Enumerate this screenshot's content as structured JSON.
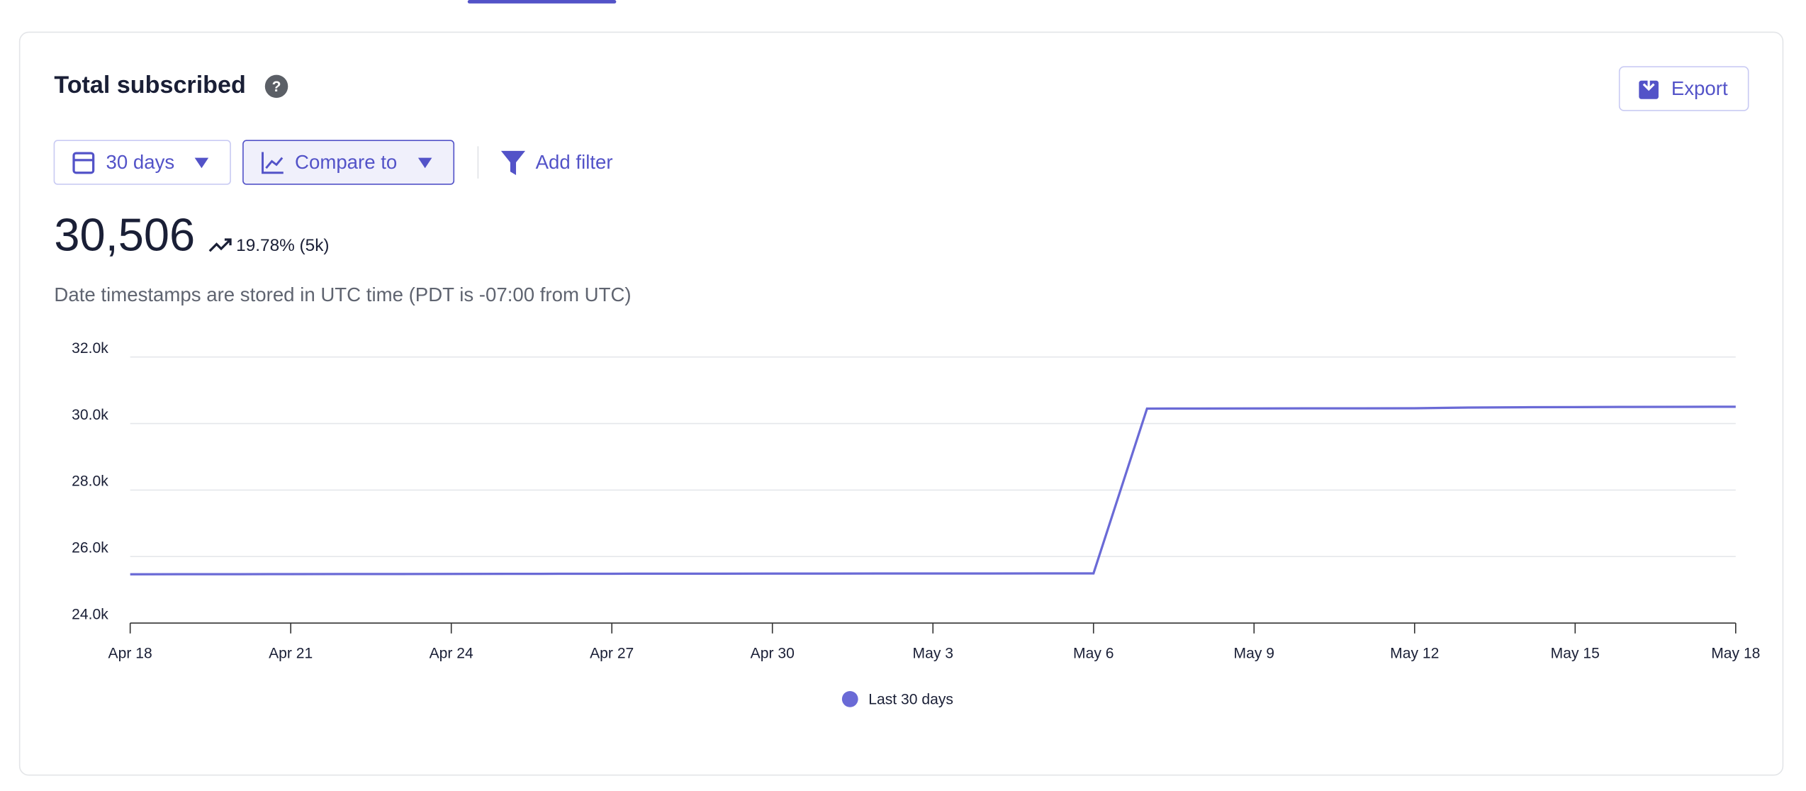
{
  "header": {
    "title": "Total subscribed",
    "export": "Export"
  },
  "controls": {
    "range": "30 days",
    "compare": "Compare to",
    "filter": "Add filter"
  },
  "metric": {
    "value": "30,506",
    "change": "19.78% (5k)"
  },
  "note": "Date timestamps are stored in UTC time (PDT is -07:00 from UTC)",
  "chart_data": {
    "type": "line",
    "categories": [
      "Apr 18",
      null,
      null,
      "Apr 21",
      null,
      null,
      "Apr 24",
      null,
      null,
      "Apr 27",
      null,
      null,
      "Apr 30",
      null,
      null,
      "May 3",
      null,
      null,
      "May 6",
      null,
      null,
      "May 9",
      null,
      null,
      "May 12",
      null,
      null,
      "May 15",
      null,
      null,
      "May 18"
    ],
    "series": [
      {
        "name": "Last 30 days",
        "color": "#6a6ad6",
        "values": [
          25468,
          25470,
          25471,
          25473,
          25474,
          25476,
          25478,
          25480,
          25482,
          25484,
          25486,
          25487,
          25488,
          25489,
          25490,
          25491,
          25492,
          25493,
          25494,
          30450,
          30452,
          30454,
          30456,
          30458,
          30460,
          30480,
          30490,
          30495,
          30500,
          30503,
          30506
        ]
      }
    ],
    "ylim": [
      24000,
      32000
    ],
    "yticks": [
      {
        "value": 24000,
        "label": "24.0k"
      },
      {
        "value": 26000,
        "label": "26.0k"
      },
      {
        "value": 28000,
        "label": "28.0k"
      },
      {
        "value": 30000,
        "label": "30.0k"
      },
      {
        "value": 32000,
        "label": "32.0k"
      }
    ],
    "grid": true,
    "legend": "bottom"
  }
}
